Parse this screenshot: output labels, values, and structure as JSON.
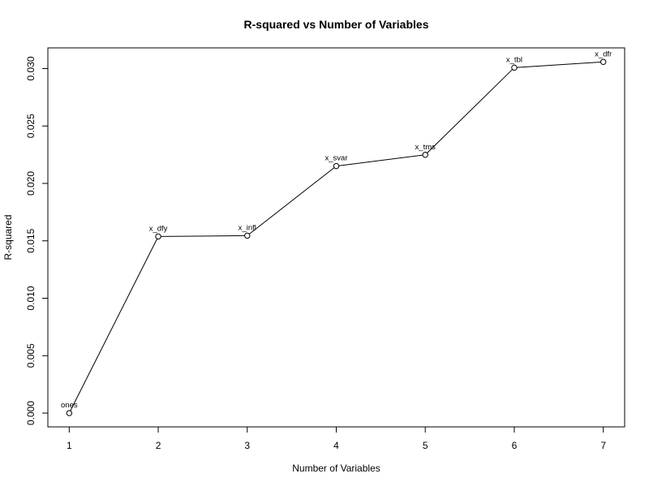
{
  "chart_data": {
    "type": "line",
    "title": "R-squared vs Number of Variables",
    "xlabel": "Number of Variables",
    "ylabel": "R-squared",
    "x": [
      1,
      2,
      3,
      4,
      5,
      6,
      7
    ],
    "xlim": [
      0.76,
      7.24
    ],
    "ylim": [
      -0.0012,
      0.0318
    ],
    "x_ticks": [
      1,
      2,
      3,
      4,
      5,
      6,
      7
    ],
    "y_ticks": [
      0.0,
      0.005,
      0.01,
      0.015,
      0.02,
      0.025,
      0.03
    ],
    "y_tick_labels": [
      "0.000",
      "0.005",
      "0.010",
      "0.015",
      "0.020",
      "0.025",
      "0.030"
    ],
    "grid": false,
    "series": [
      {
        "values": [
          0.0,
          0.01538,
          0.01545,
          0.02151,
          0.02249,
          0.03008,
          0.03058
        ],
        "point_labels": [
          "ones",
          "x_dfy",
          "x_infl",
          "x_svar",
          "x_tms",
          "x_tbl",
          "x_dfr"
        ],
        "marker": "open-circle",
        "color": "#000000"
      }
    ]
  }
}
